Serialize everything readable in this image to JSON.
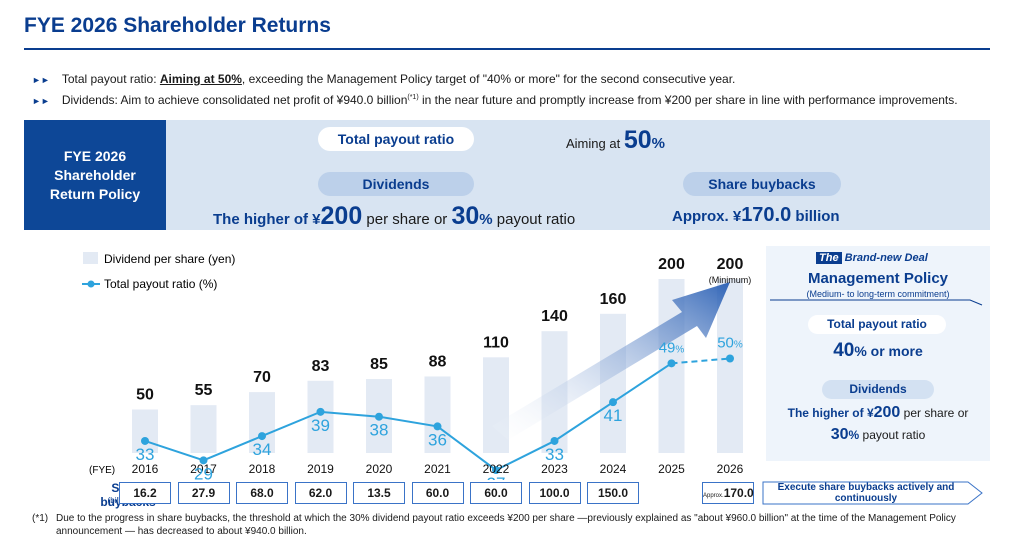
{
  "title": "FYE 2026 Shareholder Returns",
  "bullets": [
    {
      "pre": "Total payout ratio: ",
      "em": "Aiming at 50%",
      "post": ", exceeding the Management Policy target of \"40% or more\" for the second consecutive year."
    },
    {
      "pre": "Dividends: Aim to achieve consolidated net profit of ¥940.0 billion",
      "sup": "(*1)",
      "post": " in the near future and promptly increase from ¥200 per share in line with performance improvements."
    }
  ],
  "policy": {
    "box_label": "FYE 2026 Shareholder Return Policy",
    "payout_label": "Total payout ratio",
    "payout_pre": "Aiming at ",
    "payout_value": "50",
    "payout_unit": "%",
    "dividends_label": "Dividends",
    "dividends_pre": "The higher of ¥",
    "dividends_amount": "200",
    "dividends_mid": " per share or ",
    "dividends_pct": "30",
    "dividends_pct_unit": "%",
    "dividends_post": " payout ratio",
    "buyback_label": "Share buybacks",
    "buyback_pre": "Approx. ¥",
    "buyback_value": "170.0",
    "buyback_unit": " billion"
  },
  "chart_data": {
    "type": "bar",
    "categories": [
      "2016",
      "2017",
      "2018",
      "2019",
      "2020",
      "2021",
      "2022",
      "2023",
      "2024",
      "2025",
      "2026"
    ],
    "xlabel_prefix": "(FYE)",
    "series": [
      {
        "name": "Dividend per share (yen)",
        "kind": "bar",
        "values": [
          50,
          55,
          70,
          83,
          85,
          88,
          110,
          140,
          160,
          200,
          200
        ]
      },
      {
        "name": "Total payout ratio (%)",
        "kind": "line",
        "values": [
          33,
          29,
          34,
          39,
          38,
          36,
          27,
          33,
          41,
          49,
          50
        ]
      }
    ],
    "value_labels": [
      "50",
      "55",
      "70",
      "83",
      "85",
      "88",
      "110",
      "140",
      "160",
      "200",
      "200"
    ],
    "ratio_labels": [
      "33",
      "29",
      "34",
      "39",
      "38",
      "36",
      "27",
      "33",
      "41",
      "49%",
      "50%"
    ],
    "bar_2026_note": "(Minimum)",
    "colors": {
      "bar": "#e3eaf4",
      "line": "#2ea3dd",
      "accent": "#0a3d8f"
    }
  },
  "panel": {
    "tag": "The",
    "deal": "Brand-new Deal",
    "title": "Management Policy",
    "subtitle": "(Medium- to long-term commitment)",
    "payout_label": "Total payout ratio",
    "payout_value": "40",
    "payout_unit": "% or more",
    "dividends_label": "Dividends",
    "div_pre": "The higher of ¥",
    "div_amount": "200",
    "div_mid": " per share or",
    "div_pct": "30",
    "div_pct_unit": "%",
    "div_post": " payout ratio"
  },
  "buybacks": {
    "label": "Share buybacks",
    "unit": "(billion yen)",
    "values": [
      "16.2",
      "27.9",
      "68.0",
      "62.0",
      "13.5",
      "60.0",
      "60.0",
      "100.0",
      "150.0"
    ],
    "last_prefix": "Approx.",
    "last_value": "170.0",
    "policy_note": "Execute share buybacks actively and continuously"
  },
  "footnote": {
    "mark": "(*1)",
    "text": "Due to the progress in share buybacks, the threshold at which the 30% dividend payout ratio exceeds ¥200 per share —previously explained as \"about ¥960.0 billion\" at the time of the Management Policy announcement — has decreased to about ¥940.0 billion."
  }
}
